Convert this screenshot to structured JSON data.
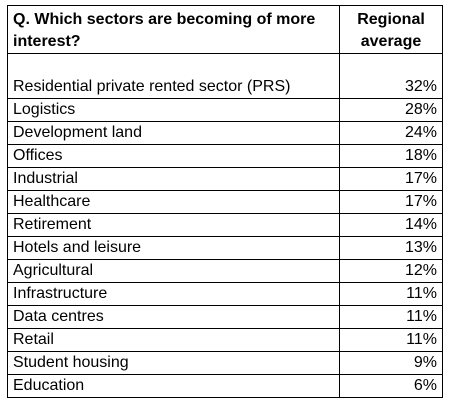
{
  "table": {
    "header_question": "Q. Which sectors are becoming of more interest?",
    "header_average": "Regional average",
    "rows": [
      {
        "sector": "Residential private rented sector (PRS)",
        "value": "32%"
      },
      {
        "sector": "Logistics",
        "value": "28%"
      },
      {
        "sector": "Development land",
        "value": "24%"
      },
      {
        "sector": "Offices",
        "value": "18%"
      },
      {
        "sector": "Industrial",
        "value": "17%"
      },
      {
        "sector": "Healthcare",
        "value": "17%"
      },
      {
        "sector": "Retirement",
        "value": "14%"
      },
      {
        "sector": "Hotels and leisure",
        "value": "13%"
      },
      {
        "sector": "Agricultural",
        "value": "12%"
      },
      {
        "sector": "Infrastructure",
        "value": "11%"
      },
      {
        "sector": "Data centres",
        "value": "11%"
      },
      {
        "sector": "Retail",
        "value": "11%"
      },
      {
        "sector": "Student housing",
        "value": "9%"
      },
      {
        "sector": "Education",
        "value": "6%"
      }
    ]
  }
}
